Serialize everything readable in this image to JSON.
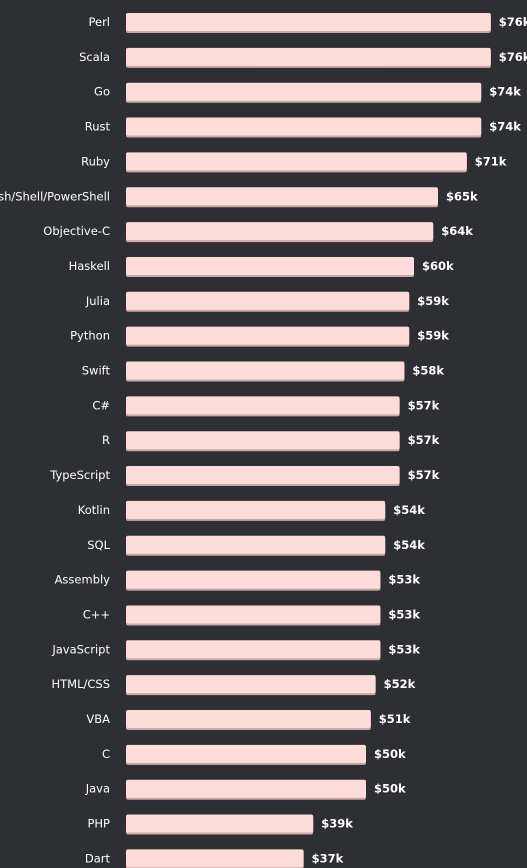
{
  "chart_data": {
    "type": "bar",
    "orientation": "horizontal",
    "value_prefix": "$",
    "value_suffix": "k",
    "categories": [
      "Perl",
      "Scala",
      "Go",
      "Rust",
      "Ruby",
      "Bash/Shell/PowerShell",
      "Objective-C",
      "Haskell",
      "Julia",
      "Python",
      "Swift",
      "C#",
      "R",
      "TypeScript",
      "Kotlin",
      "SQL",
      "Assembly",
      "C++",
      "JavaScript",
      "HTML/CSS",
      "VBA",
      "C",
      "Java",
      "PHP",
      "Dart"
    ],
    "values": [
      76,
      76,
      74,
      74,
      71,
      65,
      64,
      60,
      59,
      59,
      58,
      57,
      57,
      57,
      54,
      54,
      53,
      53,
      53,
      52,
      51,
      50,
      50,
      39,
      37
    ],
    "value_labels": [
      "$76k",
      "$76k",
      "$74k",
      "$74k",
      "$71k",
      "$65k",
      "$64k",
      "$60k",
      "$59k",
      "$59k",
      "$58k",
      "$57k",
      "$57k",
      "$57k",
      "$54k",
      "$54k",
      "$53k",
      "$53k",
      "$53k",
      "$52k",
      "$51k",
      "$50k",
      "$50k",
      "$39k",
      "$37k"
    ],
    "colors": {
      "background": "#2d2f33",
      "bar": "#ffdcdc",
      "bar_shadow": "#c9a9a9",
      "text": "#ffffff"
    }
  }
}
